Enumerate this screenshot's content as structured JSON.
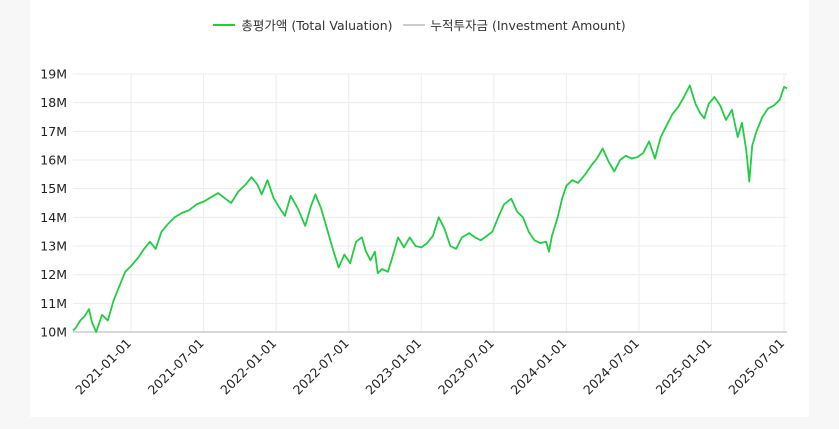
{
  "chart_data": {
    "type": "line",
    "title": "",
    "xlabel": "",
    "ylabel": "",
    "ylim": [
      10000000,
      19000000
    ],
    "y_ticks": [
      {
        "value": 10000000,
        "label": "10M"
      },
      {
        "value": 11000000,
        "label": "11M"
      },
      {
        "value": 12000000,
        "label": "12M"
      },
      {
        "value": 13000000,
        "label": "13M"
      },
      {
        "value": 14000000,
        "label": "14M"
      },
      {
        "value": 15000000,
        "label": "15M"
      },
      {
        "value": 16000000,
        "label": "16M"
      },
      {
        "value": 17000000,
        "label": "17M"
      },
      {
        "value": 18000000,
        "label": "18M"
      },
      {
        "value": 19000000,
        "label": "19M"
      }
    ],
    "x_ticks": [
      {
        "value": 2021.0,
        "label": "2021-01-01"
      },
      {
        "value": 2021.5,
        "label": "2021-07-01"
      },
      {
        "value": 2022.0,
        "label": "2022-01-01"
      },
      {
        "value": 2022.5,
        "label": "2022-07-01"
      },
      {
        "value": 2023.0,
        "label": "2023-01-01"
      },
      {
        "value": 2023.5,
        "label": "2023-07-01"
      },
      {
        "value": 2024.0,
        "label": "2024-01-01"
      },
      {
        "value": 2024.5,
        "label": "2024-07-01"
      },
      {
        "value": 2025.0,
        "label": "2025-01-01"
      },
      {
        "value": 2025.5,
        "label": "2025-07-01"
      }
    ],
    "xlim": [
      2020.6,
      2025.52
    ],
    "series": [
      {
        "name": "총평가액 (Total Valuation)",
        "color": "#22cc44",
        "points": [
          [
            2020.6,
            10050000
          ],
          [
            2020.62,
            10150000
          ],
          [
            2020.65,
            10400000
          ],
          [
            2020.68,
            10550000
          ],
          [
            2020.71,
            10800000
          ],
          [
            2020.73,
            10350000
          ],
          [
            2020.76,
            10000000
          ],
          [
            2020.8,
            10600000
          ],
          [
            2020.84,
            10400000
          ],
          [
            2020.88,
            11100000
          ],
          [
            2020.92,
            11600000
          ],
          [
            2020.96,
            12100000
          ],
          [
            2021.0,
            12300000
          ],
          [
            2021.05,
            12600000
          ],
          [
            2021.09,
            12900000
          ],
          [
            2021.13,
            13150000
          ],
          [
            2021.17,
            12900000
          ],
          [
            2021.21,
            13500000
          ],
          [
            2021.26,
            13800000
          ],
          [
            2021.3,
            14000000
          ],
          [
            2021.35,
            14150000
          ],
          [
            2021.4,
            14250000
          ],
          [
            2021.45,
            14450000
          ],
          [
            2021.5,
            14550000
          ],
          [
            2021.55,
            14700000
          ],
          [
            2021.6,
            14850000
          ],
          [
            2021.65,
            14650000
          ],
          [
            2021.69,
            14500000
          ],
          [
            2021.74,
            14900000
          ],
          [
            2021.79,
            15150000
          ],
          [
            2021.83,
            15400000
          ],
          [
            2021.87,
            15150000
          ],
          [
            2021.9,
            14800000
          ],
          [
            2021.94,
            15300000
          ],
          [
            2021.98,
            14700000
          ],
          [
            2022.02,
            14350000
          ],
          [
            2022.06,
            14050000
          ],
          [
            2022.1,
            14750000
          ],
          [
            2022.15,
            14300000
          ],
          [
            2022.2,
            13700000
          ],
          [
            2022.24,
            14400000
          ],
          [
            2022.27,
            14800000
          ],
          [
            2022.31,
            14300000
          ],
          [
            2022.35,
            13600000
          ],
          [
            2022.39,
            12900000
          ],
          [
            2022.43,
            12250000
          ],
          [
            2022.47,
            12700000
          ],
          [
            2022.51,
            12400000
          ],
          [
            2022.55,
            13150000
          ],
          [
            2022.59,
            13300000
          ],
          [
            2022.62,
            12800000
          ],
          [
            2022.65,
            12500000
          ],
          [
            2022.68,
            12800000
          ],
          [
            2022.7,
            12050000
          ],
          [
            2022.73,
            12200000
          ],
          [
            2022.77,
            12100000
          ],
          [
            2022.8,
            12600000
          ],
          [
            2022.84,
            13300000
          ],
          [
            2022.88,
            12950000
          ],
          [
            2022.92,
            13300000
          ],
          [
            2022.96,
            13000000
          ],
          [
            2023.0,
            12950000
          ],
          [
            2023.04,
            13100000
          ],
          [
            2023.08,
            13350000
          ],
          [
            2023.12,
            14000000
          ],
          [
            2023.16,
            13600000
          ],
          [
            2023.2,
            13000000
          ],
          [
            2023.24,
            12900000
          ],
          [
            2023.28,
            13300000
          ],
          [
            2023.33,
            13450000
          ],
          [
            2023.37,
            13300000
          ],
          [
            2023.41,
            13200000
          ],
          [
            2023.45,
            13350000
          ],
          [
            2023.49,
            13500000
          ],
          [
            2023.53,
            14000000
          ],
          [
            2023.57,
            14450000
          ],
          [
            2023.62,
            14650000
          ],
          [
            2023.66,
            14200000
          ],
          [
            2023.7,
            14000000
          ],
          [
            2023.74,
            13500000
          ],
          [
            2023.78,
            13200000
          ],
          [
            2023.82,
            13100000
          ],
          [
            2023.86,
            13150000
          ],
          [
            2023.88,
            12800000
          ],
          [
            2023.9,
            13350000
          ],
          [
            2023.94,
            14000000
          ],
          [
            2023.97,
            14650000
          ],
          [
            2024.0,
            15100000
          ],
          [
            2024.04,
            15300000
          ],
          [
            2024.08,
            15200000
          ],
          [
            2024.13,
            15500000
          ],
          [
            2024.17,
            15800000
          ],
          [
            2024.21,
            16050000
          ],
          [
            2024.25,
            16400000
          ],
          [
            2024.29,
            15950000
          ],
          [
            2024.33,
            15600000
          ],
          [
            2024.37,
            16000000
          ],
          [
            2024.41,
            16150000
          ],
          [
            2024.45,
            16050000
          ],
          [
            2024.49,
            16100000
          ],
          [
            2024.53,
            16250000
          ],
          [
            2024.57,
            16650000
          ],
          [
            2024.61,
            16050000
          ],
          [
            2024.65,
            16800000
          ],
          [
            2024.69,
            17200000
          ],
          [
            2024.73,
            17600000
          ],
          [
            2024.77,
            17850000
          ],
          [
            2024.81,
            18200000
          ],
          [
            2024.85,
            18600000
          ],
          [
            2024.89,
            17950000
          ],
          [
            2024.92,
            17650000
          ],
          [
            2024.95,
            17450000
          ],
          [
            2024.98,
            17950000
          ],
          [
            2025.02,
            18200000
          ],
          [
            2025.06,
            17900000
          ],
          [
            2025.1,
            17400000
          ],
          [
            2025.14,
            17750000
          ],
          [
            2025.18,
            16800000
          ],
          [
            2025.21,
            17300000
          ],
          [
            2025.24,
            16300000
          ],
          [
            2025.26,
            15250000
          ],
          [
            2025.28,
            16500000
          ],
          [
            2025.31,
            17000000
          ],
          [
            2025.35,
            17500000
          ],
          [
            2025.39,
            17800000
          ],
          [
            2025.43,
            17900000
          ],
          [
            2025.47,
            18100000
          ],
          [
            2025.5,
            18550000
          ],
          [
            2025.52,
            18500000
          ]
        ]
      },
      {
        "name": "누적투자금 (Investment Amount)",
        "color": "#cccccc",
        "points": [
          [
            2020.6,
            10000000
          ],
          [
            2025.52,
            10000000
          ]
        ]
      }
    ]
  }
}
